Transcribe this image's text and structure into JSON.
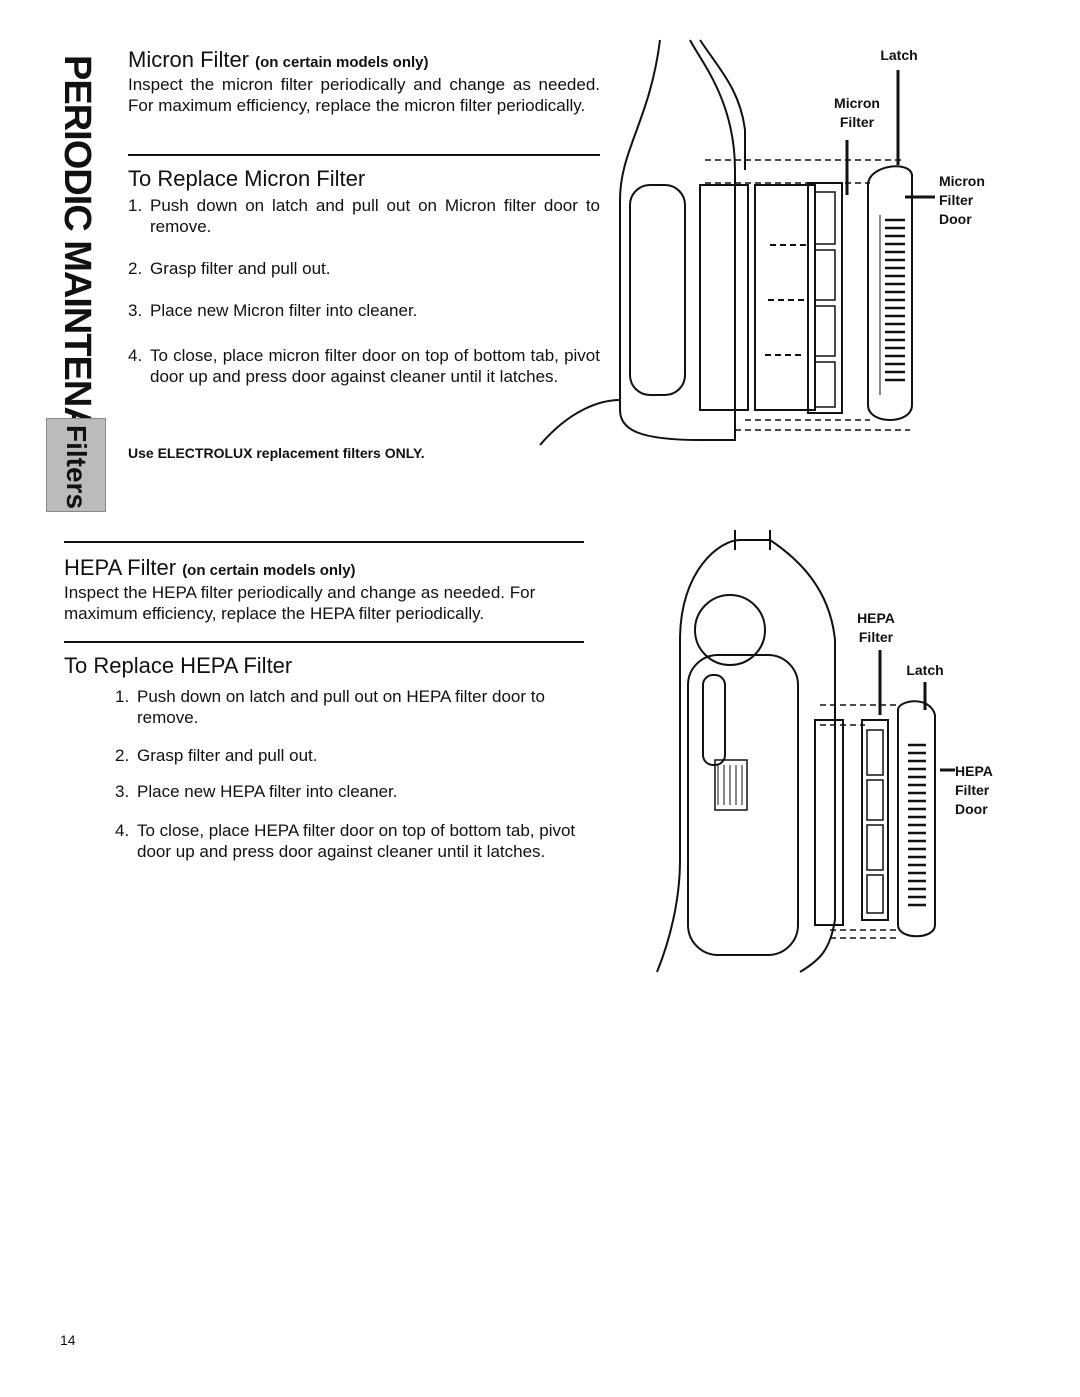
{
  "sidebar": {
    "section": "PERIODIC MAINTENANCE",
    "tab": "Filters"
  },
  "micron": {
    "heading": "Micron Filter",
    "heading_note": "(on certain models only)",
    "intro": "Inspect the micron filter periodically and change as needed. For maximum efficiency, replace the micron filter periodically.",
    "replace_heading": "To Replace Micron Filter",
    "steps": [
      {
        "number": "1.",
        "text": "Push down on latch and pull out on Micron filter door to remove."
      },
      {
        "number": "2.",
        "text": "Grasp filter and pull out."
      },
      {
        "number": "3.",
        "text": "Place new Micron filter into cleaner."
      },
      {
        "number": "4.",
        "text": "To close, place micron filter door on top of bottom tab, pivot door up and press door against cleaner until it latches."
      }
    ],
    "note": "Use ELECTROLUX replacement filters ONLY.",
    "figure_labels": {
      "latch": "Latch",
      "filter": "Micron Filter",
      "door": "Micron Filter Door"
    }
  },
  "hepa": {
    "heading": "HEPA Filter",
    "heading_note": "(on certain models only)",
    "intro": "Inspect the HEPA filter periodically and change as needed. For maximum efficiency, replace the HEPA filter periodically.",
    "replace_heading": "To Replace HEPA Filter",
    "steps": [
      {
        "number": "1.",
        "text": "Push down on latch and pull out on HEPA filter door to remove."
      },
      {
        "number": "2.",
        "text": "Grasp filter and pull out."
      },
      {
        "number": "3.",
        "text": "Place new HEPA filter into cleaner."
      },
      {
        "number": "4.",
        "text": "To close, place HEPA filter door on top of bottom tab, pivot door up and press door against cleaner until it latches."
      }
    ],
    "figure_labels": {
      "filter": "HEPA Filter",
      "latch": "Latch",
      "door": "HEPA Filter Door"
    }
  },
  "page_number": "14"
}
